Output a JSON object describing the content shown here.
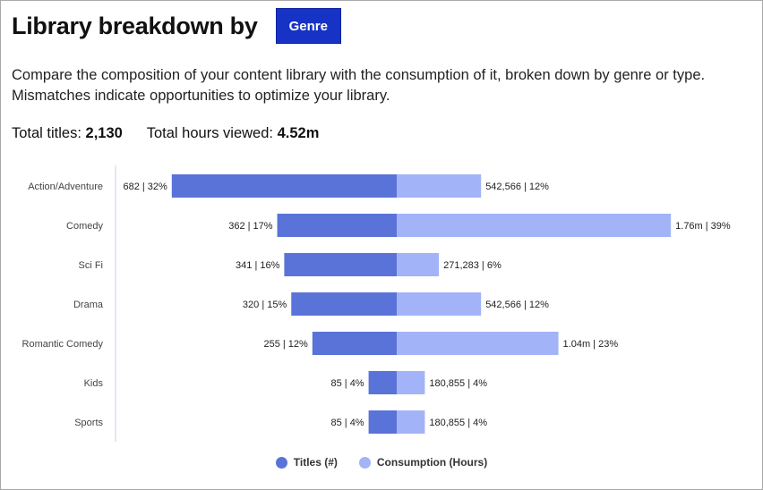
{
  "header": {
    "title": "Library breakdown by",
    "genre_button": "Genre"
  },
  "description": "Compare the composition of your content library with the consumption of it, broken down by genre or type. Mismatches indicate opportunities to optimize your library.",
  "totals": {
    "titles_label": "Total titles:",
    "titles_value": "2,130",
    "hours_label": "Total hours viewed:",
    "hours_value": "4.52m"
  },
  "colors": {
    "titles": "#5a73d8",
    "consumption": "#a3b3f7",
    "button": "#1633c6"
  },
  "chart_data": {
    "type": "bar",
    "orientation": "horizontal-diverging",
    "categories": [
      "Action/Adventure",
      "Comedy",
      "Sci Fi",
      "Drama",
      "Romantic Comedy",
      "Kids",
      "Sports"
    ],
    "series": [
      {
        "name": "Titles (#)",
        "values": [
          682,
          362,
          341,
          320,
          255,
          85,
          85
        ],
        "percents": [
          32,
          17,
          16,
          15,
          12,
          4,
          4
        ],
        "labels": [
          "682 | 32%",
          "362 | 17%",
          "341 | 16%",
          "320 | 15%",
          "255 | 12%",
          "85 | 4%",
          "85 | 4%"
        ]
      },
      {
        "name": "Consumption (Hours)",
        "values": [
          542566,
          1760000,
          271283,
          542566,
          1040000,
          180855,
          180855
        ],
        "percents": [
          12,
          39,
          6,
          12,
          23,
          4,
          4
        ],
        "labels": [
          "542,566 | 12%",
          "1.76m | 39%",
          "271,283 | 6%",
          "542,566 | 12%",
          "1.04m | 23%",
          "180,855 | 4%",
          "180,855 | 4%"
        ]
      }
    ],
    "legend": "bottom-center",
    "grid": false
  }
}
